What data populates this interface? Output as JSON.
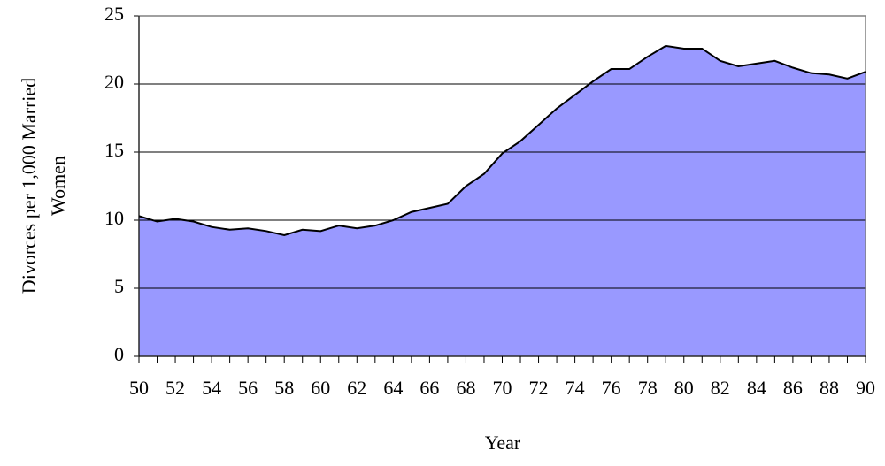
{
  "chart_data": {
    "type": "area",
    "ylabel": [
      "Divorces per 1,000 Married",
      "Women"
    ],
    "xlabel": "Year",
    "categories": [
      "50",
      null,
      "52",
      null,
      "54",
      null,
      "56",
      null,
      "58",
      null,
      "60",
      null,
      "62",
      null,
      "64",
      null,
      "66",
      null,
      "68",
      null,
      "70",
      null,
      "72",
      null,
      "74",
      null,
      "76",
      null,
      "78",
      null,
      "80",
      null,
      "82",
      null,
      "84",
      null,
      "86",
      null,
      "88",
      null,
      "90"
    ],
    "values": [
      10.3,
      9.9,
      10.1,
      9.9,
      9.5,
      9.3,
      9.4,
      9.2,
      8.9,
      9.3,
      9.2,
      9.6,
      9.4,
      9.6,
      10.0,
      10.6,
      10.9,
      11.2,
      12.5,
      13.4,
      14.9,
      15.8,
      17.0,
      18.2,
      19.2,
      20.2,
      21.1,
      21.1,
      22.0,
      22.8,
      22.6,
      22.6,
      21.7,
      21.3,
      21.5,
      21.7,
      21.2,
      20.8,
      20.7,
      20.4,
      20.9
    ],
    "color": "#9999ff",
    "ylim": [
      0,
      25
    ],
    "yticks": [
      0,
      5,
      10,
      15,
      20,
      25
    ],
    "grid": true
  }
}
